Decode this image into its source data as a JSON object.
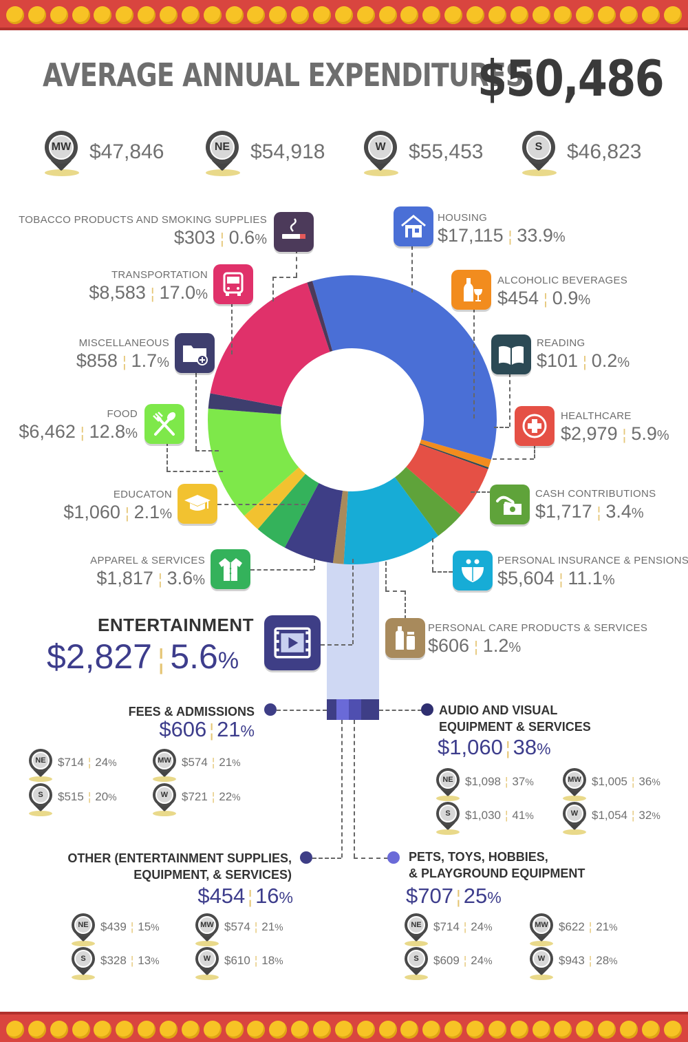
{
  "header": {
    "title": "AVERAGE ANNUAL EXPENDITURES:",
    "total": "$50,486"
  },
  "regions": [
    {
      "code": "MW",
      "value": "$47,846"
    },
    {
      "code": "NE",
      "value": "$54,918"
    },
    {
      "code": "W",
      "value": "$55,453"
    },
    {
      "code": "S",
      "value": "$46,823"
    }
  ],
  "colors": {
    "housing": "#4a6fd6",
    "alcoholic": "#f28c1e",
    "reading": "#2c4a55",
    "healthcare": "#e55045",
    "cash": "#5fa33a",
    "insurance": "#17acd6",
    "personal_care": "#a88a5c",
    "entertainment": "#3e3e86",
    "apparel": "#34b25b",
    "education": "#f2c230",
    "food": "#7ee84a",
    "misc": "#3e3e6e",
    "transportation": "#e0316a",
    "tobacco": "#4c3a5a",
    "marquee": "#d9453f",
    "bulb": "#f7c325"
  },
  "chart_data": {
    "type": "pie",
    "style": "donut",
    "total": 50486,
    "slices": [
      {
        "key": "housing",
        "name": "HOUSING",
        "value": 17115,
        "percent": 33.9,
        "color": "#4a6fd6"
      },
      {
        "key": "alcoholic",
        "name": "ALCOHOLIC BEVERAGES",
        "value": 454,
        "percent": 0.9,
        "color": "#f28c1e"
      },
      {
        "key": "reading",
        "name": "READING",
        "value": 101,
        "percent": 0.2,
        "color": "#2c4a55"
      },
      {
        "key": "healthcare",
        "name": "HEALTHCARE",
        "value": 2979,
        "percent": 5.9,
        "color": "#e55045"
      },
      {
        "key": "cash",
        "name": "CASH CONTRIBUTIONS",
        "value": 1717,
        "percent": 3.4,
        "color": "#5fa33a"
      },
      {
        "key": "insurance",
        "name": "PERSONAL INSURANCE & PENSIONS",
        "value": 5604,
        "percent": 11.1,
        "color": "#17acd6"
      },
      {
        "key": "personal_care",
        "name": "PERSONAL CARE PRODUCTS & SERVICES",
        "value": 606,
        "percent": 1.2,
        "color": "#a88a5c"
      },
      {
        "key": "entertainment",
        "name": "ENTERTAINMENT",
        "value": 2827,
        "percent": 5.6,
        "color": "#3e3e86"
      },
      {
        "key": "apparel",
        "name": "APPAREL & SERVICES",
        "value": 1817,
        "percent": 3.6,
        "color": "#34b25b"
      },
      {
        "key": "education",
        "name": "EDUCATON",
        "value": 1060,
        "percent": 2.1,
        "color": "#f2c230"
      },
      {
        "key": "food",
        "name": "FOOD",
        "value": 6462,
        "percent": 12.8,
        "color": "#7ee84a"
      },
      {
        "key": "misc",
        "name": "MISCELLANEOUS",
        "value": 858,
        "percent": 1.7,
        "color": "#3e3e6e"
      },
      {
        "key": "transportation",
        "name": "TRANSPORTATION",
        "value": 8583,
        "percent": 17.0,
        "color": "#e0316a"
      },
      {
        "key": "tobacco",
        "name": "TOBACCO PRODUCTS AND SMOKING SUPPLIES",
        "value": 303,
        "percent": 0.6,
        "color": "#4c3a5a"
      }
    ]
  },
  "labels": {
    "tobacco": {
      "name": "TOBACCO PRODUCTS AND SMOKING SUPPLIES",
      "amount": "$303",
      "pct": "0.6",
      "pct_sym": "%"
    },
    "transportation": {
      "name": "TRANSPORTATION",
      "amount": "$8,583",
      "pct": "17.0",
      "pct_sym": "%"
    },
    "misc": {
      "name": "MISCELLANEOUS",
      "amount": "$858",
      "pct": "1.7",
      "pct_sym": "%"
    },
    "food": {
      "name": "FOOD",
      "amount": "$6,462",
      "pct": "12.8",
      "pct_sym": "%"
    },
    "education": {
      "name": "EDUCATON",
      "amount": "$1,060",
      "pct": "2.1",
      "pct_sym": "%"
    },
    "apparel": {
      "name": "APPAREL & SERVICES",
      "amount": "$1,817",
      "pct": "3.6",
      "pct_sym": "%"
    },
    "housing": {
      "name": "HOUSING",
      "amount": "$17,115",
      "pct": "33.9",
      "pct_sym": "%"
    },
    "alcoholic": {
      "name": "ALCOHOLIC BEVERAGES",
      "amount": "$454",
      "pct": "0.9",
      "pct_sym": "%"
    },
    "reading": {
      "name": "READING",
      "amount": "$101",
      "pct": "0.2",
      "pct_sym": "%"
    },
    "healthcare": {
      "name": "HEALTHCARE",
      "amount": "$2,979",
      "pct": "5.9",
      "pct_sym": "%"
    },
    "cash": {
      "name": "CASH CONTRIBUTIONS",
      "amount": "$1,717",
      "pct": "3.4",
      "pct_sym": "%"
    },
    "insurance": {
      "name": "PERSONAL INSURANCE & PENSIONS",
      "amount": "$5,604",
      "pct": "11.1",
      "pct_sym": "%"
    },
    "personal_care": {
      "name": "PERSONAL CARE PRODUCTS & SERVICES",
      "amount": "$606",
      "pct": "1.2",
      "pct_sym": "%"
    },
    "entertainment": {
      "name": "ENTERTAINMENT",
      "amount": "$2,827",
      "pct": "5.6",
      "pct_sym": "%"
    }
  },
  "icons": {
    "tobacco": "cigarette-icon",
    "transportation": "bus-icon",
    "misc": "folder-plus-icon",
    "food": "fork-spoon-icon",
    "education": "graduation-cap-icon",
    "apparel": "shirt-icon",
    "housing": "house-icon",
    "alcoholic": "bottle-glass-icon",
    "reading": "open-book-icon",
    "healthcare": "medical-cross-icon",
    "cash": "hand-money-icon",
    "insurance": "family-shield-icon",
    "personal_care": "lotion-bottles-icon",
    "entertainment": "film-play-icon"
  },
  "entertainment_breakdown": {
    "fees": {
      "title": "FEES & ADMISSIONS",
      "amount": "$606",
      "pct": "21",
      "pct_sym": "%",
      "regions": [
        {
          "code": "NE",
          "amount": "$714",
          "pct": "24"
        },
        {
          "code": "MW",
          "amount": "$574",
          "pct": "21"
        },
        {
          "code": "S",
          "amount": "$515",
          "pct": "20"
        },
        {
          "code": "W",
          "amount": "$721",
          "pct": "22"
        }
      ]
    },
    "audio": {
      "title_line1": "AUDIO AND VISUAL",
      "title_line2": "EQUIPMENT & SERVICES",
      "amount": "$1,060",
      "pct": "38",
      "pct_sym": "%",
      "regions": [
        {
          "code": "NE",
          "amount": "$1,098",
          "pct": "37"
        },
        {
          "code": "MW",
          "amount": "$1,005",
          "pct": "36"
        },
        {
          "code": "S",
          "amount": "$1,030",
          "pct": "41"
        },
        {
          "code": "W",
          "amount": "$1,054",
          "pct": "32"
        }
      ]
    },
    "other": {
      "title_line1": "OTHER (ENTERTAINMENT SUPPLIES,",
      "title_line2": "EQUIPMENT, & SERVICES)",
      "amount": "$454",
      "pct": "16",
      "pct_sym": "%",
      "regions": [
        {
          "code": "NE",
          "amount": "$439",
          "pct": "15"
        },
        {
          "code": "MW",
          "amount": "$574",
          "pct": "21"
        },
        {
          "code": "S",
          "amount": "$328",
          "pct": "13"
        },
        {
          "code": "W",
          "amount": "$610",
          "pct": "18"
        }
      ]
    },
    "pets": {
      "title_line1": "PETS, TOYS, HOBBIES,",
      "title_line2": "& PLAYGROUND EQUIPMENT",
      "amount": "$707",
      "pct": "25",
      "pct_sym": "%",
      "regions": [
        {
          "code": "NE",
          "amount": "$714",
          "pct": "24"
        },
        {
          "code": "MW",
          "amount": "$622",
          "pct": "21"
        },
        {
          "code": "S",
          "amount": "$609",
          "pct": "24"
        },
        {
          "code": "W",
          "amount": "$943",
          "pct": "28"
        }
      ]
    }
  }
}
